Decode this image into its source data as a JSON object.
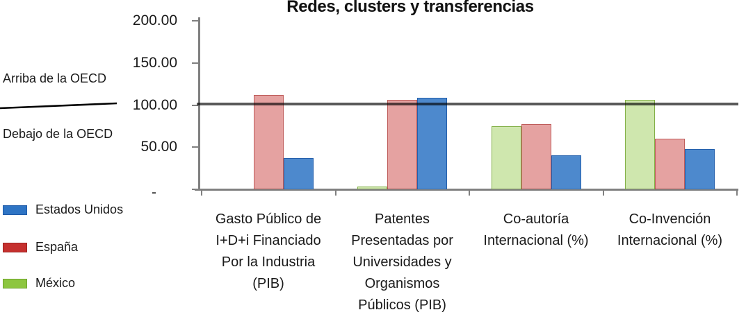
{
  "title": "Redes, clusters y transferencias",
  "annotations": {
    "above_line": "Arriba de la OECD",
    "below_line": "Debajo de la OECD"
  },
  "legend": {
    "position": "left-bottom",
    "items": [
      {
        "key": "estados-unidos",
        "label": "Estados Unidos",
        "color": "#2E74C4",
        "border": "#1F5BA8"
      },
      {
        "key": "espana",
        "label": "España",
        "color": "#C5302E",
        "border": "#9E2321"
      },
      {
        "key": "mexico",
        "label": "México",
        "color": "#8DC63F",
        "border": "#6FA32E"
      }
    ]
  },
  "chart_data": {
    "type": "bar",
    "title": "Redes, clusters y transferencias",
    "categories": [
      "Gasto Público de I+D+i Financiado Por la Industria (PIB)",
      "Patentes Presentadas por Universidades y Organismos Públicos (PIB)",
      "Co-autoría Internacional (%)",
      "Co-Invención Internacional (%)"
    ],
    "category_lines": [
      [
        "Gasto Público de",
        "I+D+i Financiado",
        "Por la Industria",
        "(PIB)"
      ],
      [
        "Patentes",
        "Presentadas por",
        "Universidades y",
        "Organismos",
        "Públicos (PIB)"
      ],
      [
        "Co-autoría",
        "Internacional (%)"
      ],
      [
        "Co-Invención",
        "Internacional (%)"
      ]
    ],
    "series": [
      {
        "key": "mexico",
        "name": "México",
        "values": [
          null,
          3,
          75,
          106
        ],
        "fill": "rgba(141,198,63,0.42)",
        "border": "rgba(111,163,46,0.80)"
      },
      {
        "key": "espana",
        "name": "España",
        "values": [
          112,
          106,
          77,
          60
        ],
        "fill": "rgba(197,48,46,0.45)",
        "border": "rgba(158,35,33,0.55)"
      },
      {
        "key": "estados-unidos",
        "name": "Estados Unidos",
        "values": [
          37,
          109,
          40,
          48
        ],
        "fill": "rgba(46,116,196,0.85)",
        "border": "rgba(31,91,168,0.90)"
      }
    ],
    "ylim": [
      0,
      200
    ],
    "ytick_values": [
      200,
      150,
      100,
      50,
      0
    ],
    "yticks": [
      "200.00",
      "150.00",
      "100.00",
      "50.00",
      "-"
    ],
    "reference_line": {
      "value": 100,
      "label_above": "Arriba de la OECD",
      "label_below": "Debajo de la OECD"
    },
    "grid": false,
    "axis_color": "#808080",
    "legend_order": [
      "Estados Unidos",
      "España",
      "México"
    ]
  }
}
